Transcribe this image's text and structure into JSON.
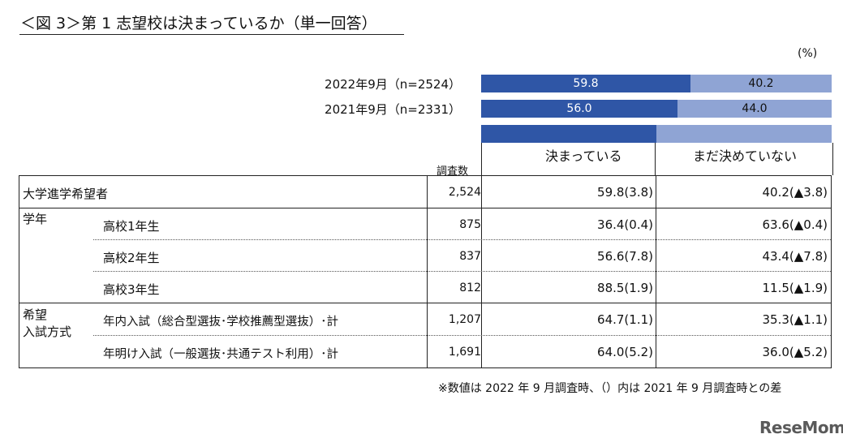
{
  "title": "＜図 3＞第 1 志望校は決まっているか（単一回答）",
  "unit": "(%)",
  "bars": [
    {
      "label": "2022年9月（n=2524）",
      "decided": 59.8,
      "decided_label": "59.8",
      "undecided": 40.2,
      "undecided_label": "40.2"
    },
    {
      "label": "2021年9月（n=2331）",
      "decided": 56.0,
      "decided_label": "56.0",
      "undecided": 44.0,
      "undecided_label": "44.0"
    }
  ],
  "legend_bar": {
    "decided": 50,
    "undecided": 50
  },
  "headers": {
    "survey_count": "調査数",
    "decided": "決まっている",
    "undecided": "まだ決めていない"
  },
  "rows": [
    {
      "group": "大学進学希望者",
      "sub": "",
      "count": "2,524",
      "decided": "59.8(3.8)",
      "undecided": "40.2(▲3.8)"
    },
    {
      "group": "学年",
      "sub": "高校1年生",
      "count": "875",
      "decided": "36.4(0.4)",
      "undecided": "63.6(▲0.4)"
    },
    {
      "group": "",
      "sub": "高校2年生",
      "count": "837",
      "decided": "56.6(7.8)",
      "undecided": "43.4(▲7.8)"
    },
    {
      "group": "",
      "sub": "高校3年生",
      "count": "812",
      "decided": "88.5(1.9)",
      "undecided": "11.5(▲1.9)"
    },
    {
      "group": "希望",
      "group2": "入試方式",
      "sub": "年内入試（総合型選抜･学校推薦型選抜）･計",
      "count": "1,207",
      "decided": "64.7(1.1)",
      "undecided": "35.3(▲1.1)"
    },
    {
      "group": "",
      "sub": "年明け入試（一般選抜･共通テスト利用）･計",
      "count": "1,691",
      "decided": "64.0(5.2)",
      "undecided": "36.0(▲5.2)"
    }
  ],
  "footnote": "※数値は 2022 年 9 月調査時、（）内は 2021 年 9 月調査時との差",
  "logo": "ReseMom",
  "colors": {
    "decided": "#2f56a6",
    "undecided": "#8fa4d4"
  },
  "chart_data": {
    "type": "bar",
    "orientation": "horizontal-stacked-100",
    "categories": [
      "2022年9月（n=2524）",
      "2021年9月（n=2331）"
    ],
    "series": [
      {
        "name": "決まっている",
        "values": [
          59.8,
          56.0
        ]
      },
      {
        "name": "まだ決めていない",
        "values": [
          40.2,
          44.0
        ]
      }
    ],
    "ylabel": "",
    "xlabel": "",
    "xlim": [
      0,
      100
    ],
    "unit": "(%)"
  }
}
